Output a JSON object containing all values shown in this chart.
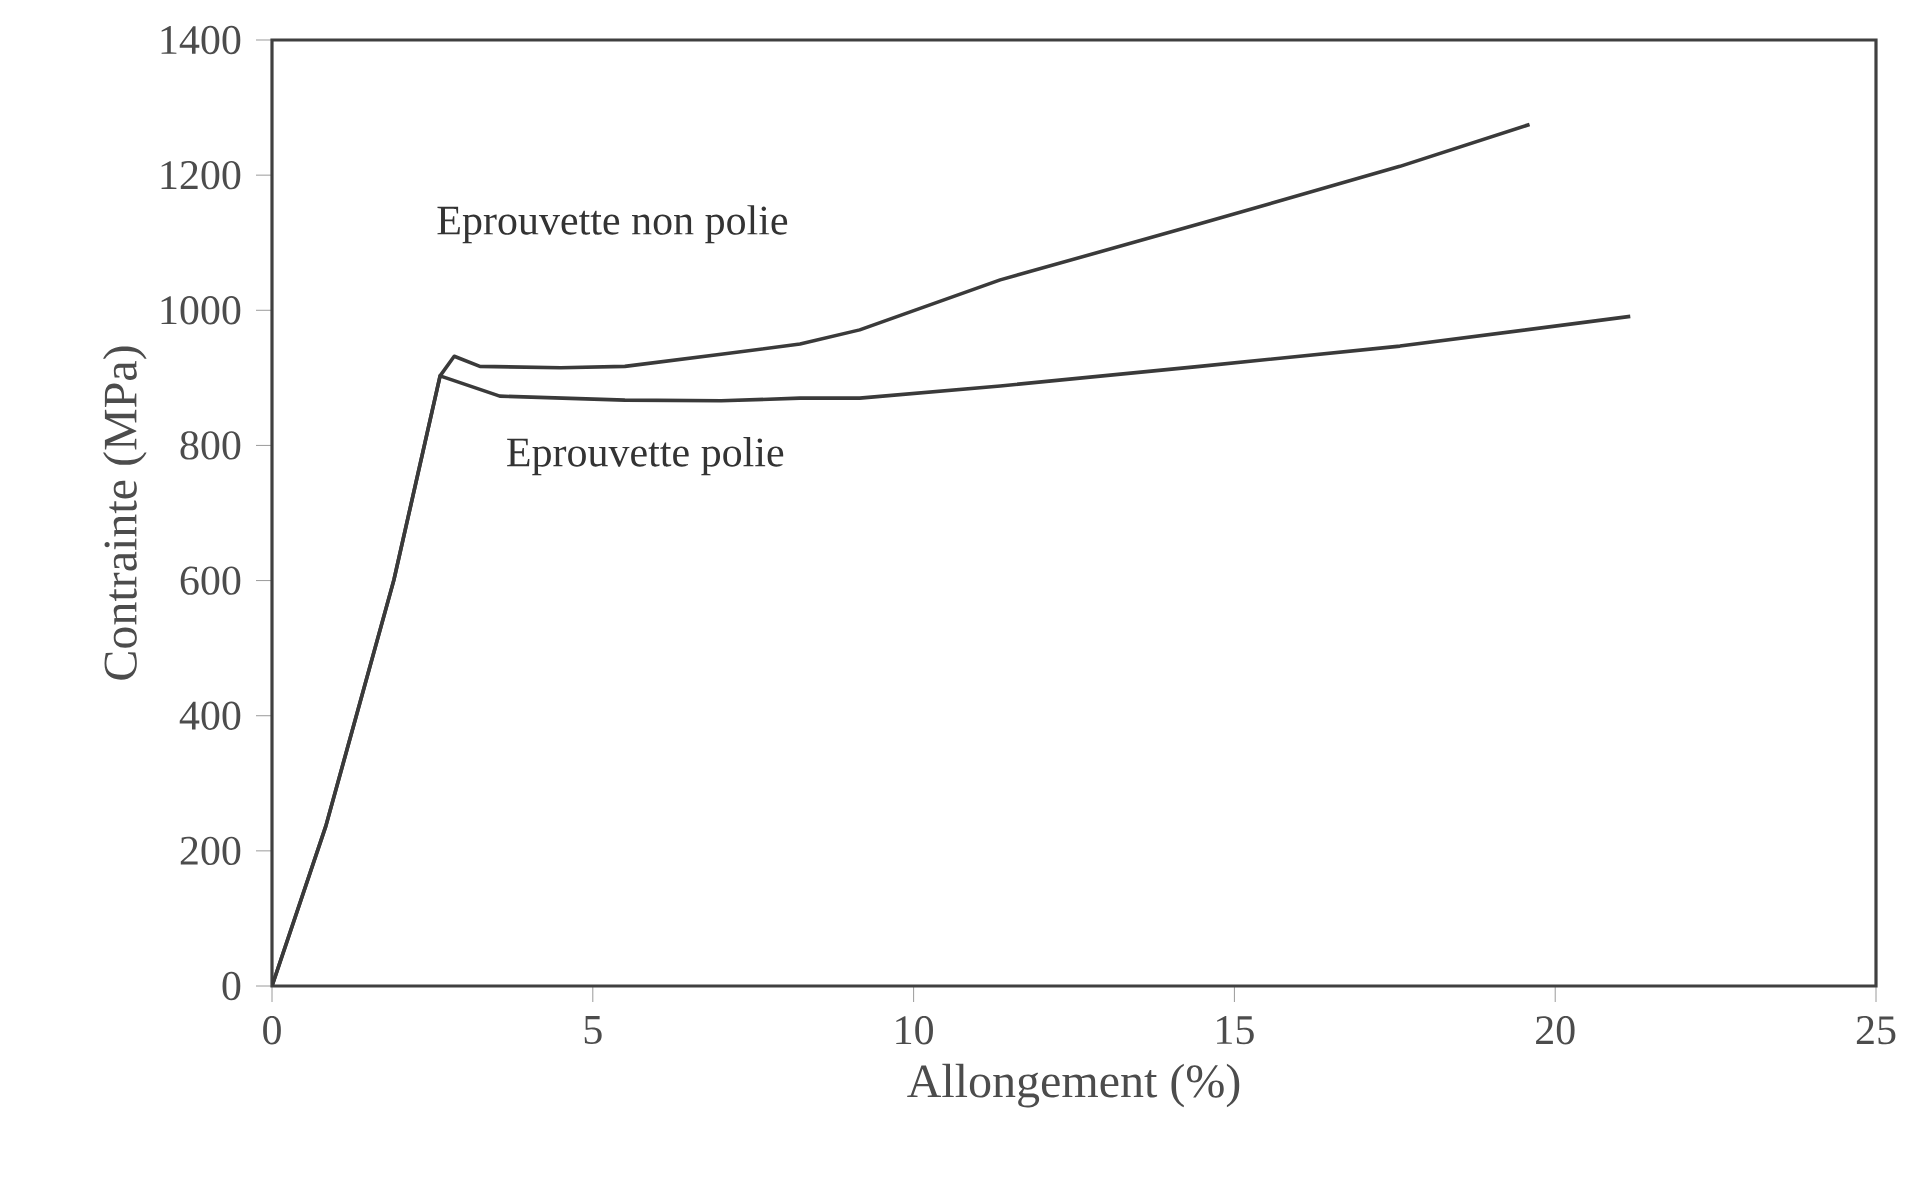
{
  "chart_data": {
    "type": "line",
    "xlabel": "Allongement (%)",
    "ylabel": "Contrainte (MPa)",
    "xlim": [
      0,
      25
    ],
    "ylim": [
      0,
      1400
    ],
    "xticks": [
      0,
      5,
      10,
      15,
      20,
      25
    ],
    "yticks": [
      0,
      200,
      400,
      600,
      800,
      1000,
      1200,
      1400
    ],
    "grid": false,
    "marker": "none",
    "line_style": "solid",
    "series": [
      {
        "name": "Eprouvette non polie",
        "color": "#3a3a3a",
        "x": [
          0,
          0.84,
          1.9,
          2.62,
          2.84,
          3.24,
          4.5,
          5.5,
          7,
          8.23,
          9.16,
          11.35,
          14.46,
          17.58,
          19.6
        ],
        "values": [
          0,
          237,
          601,
          903,
          932,
          917,
          915,
          917,
          935,
          950,
          971,
          1045,
          1128,
          1213,
          1275
        ]
      },
      {
        "name": "Eprouvette polie",
        "color": "#3a3a3a",
        "x": [
          0,
          0.84,
          1.9,
          2.62,
          3.55,
          5.5,
          7,
          8.23,
          9.16,
          11.35,
          14.46,
          17.58,
          21.17
        ],
        "values": [
          0,
          237,
          601,
          903,
          873,
          867,
          866,
          870,
          870,
          888,
          917,
          947,
          991
        ]
      }
    ]
  }
}
